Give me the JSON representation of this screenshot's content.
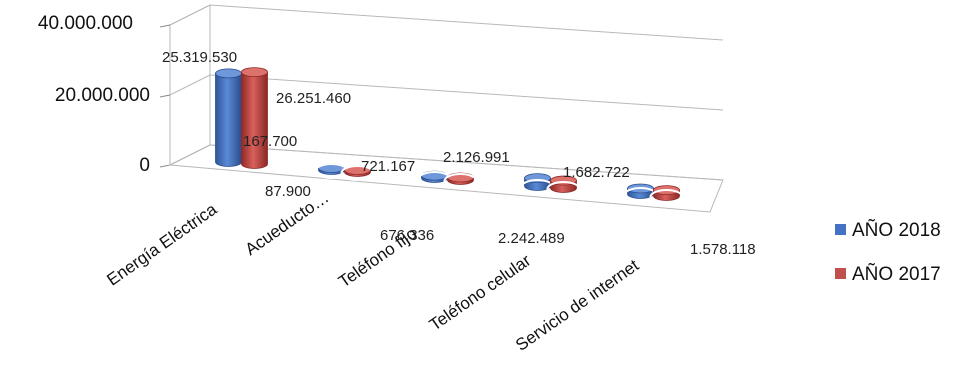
{
  "chart_data": {
    "type": "bar",
    "style": "3d-cylinder",
    "title": "",
    "xlabel": "",
    "ylabel": "",
    "categories": [
      "Energía Eléctrica",
      "Acueducto…",
      "Teléfono fijo",
      "Teléfono celular",
      "Servicio de internet"
    ],
    "series": [
      {
        "name": "AÑO 2018",
        "color": "#4472C4",
        "values": [
          25319530,
          87900,
          676336,
          2242489,
          1578118
        ],
        "labels": [
          "25.319.530",
          "87.900",
          "676.336",
          "2.242.489",
          "1.578.118"
        ]
      },
      {
        "name": "AÑO 2017",
        "color": "#C0504D",
        "values": [
          26251460,
          167700,
          721167,
          2126991,
          1682722
        ],
        "labels": [
          "26.251.460",
          "167.700",
          "721.167",
          "2.126.991",
          "1.682.722"
        ]
      }
    ],
    "yticks": [
      "0",
      "20.000.000",
      "40.000.000"
    ],
    "ytick_values": [
      0,
      20000000,
      40000000
    ],
    "ylim": [
      0,
      40000000
    ],
    "grid": true,
    "legend": "right"
  }
}
